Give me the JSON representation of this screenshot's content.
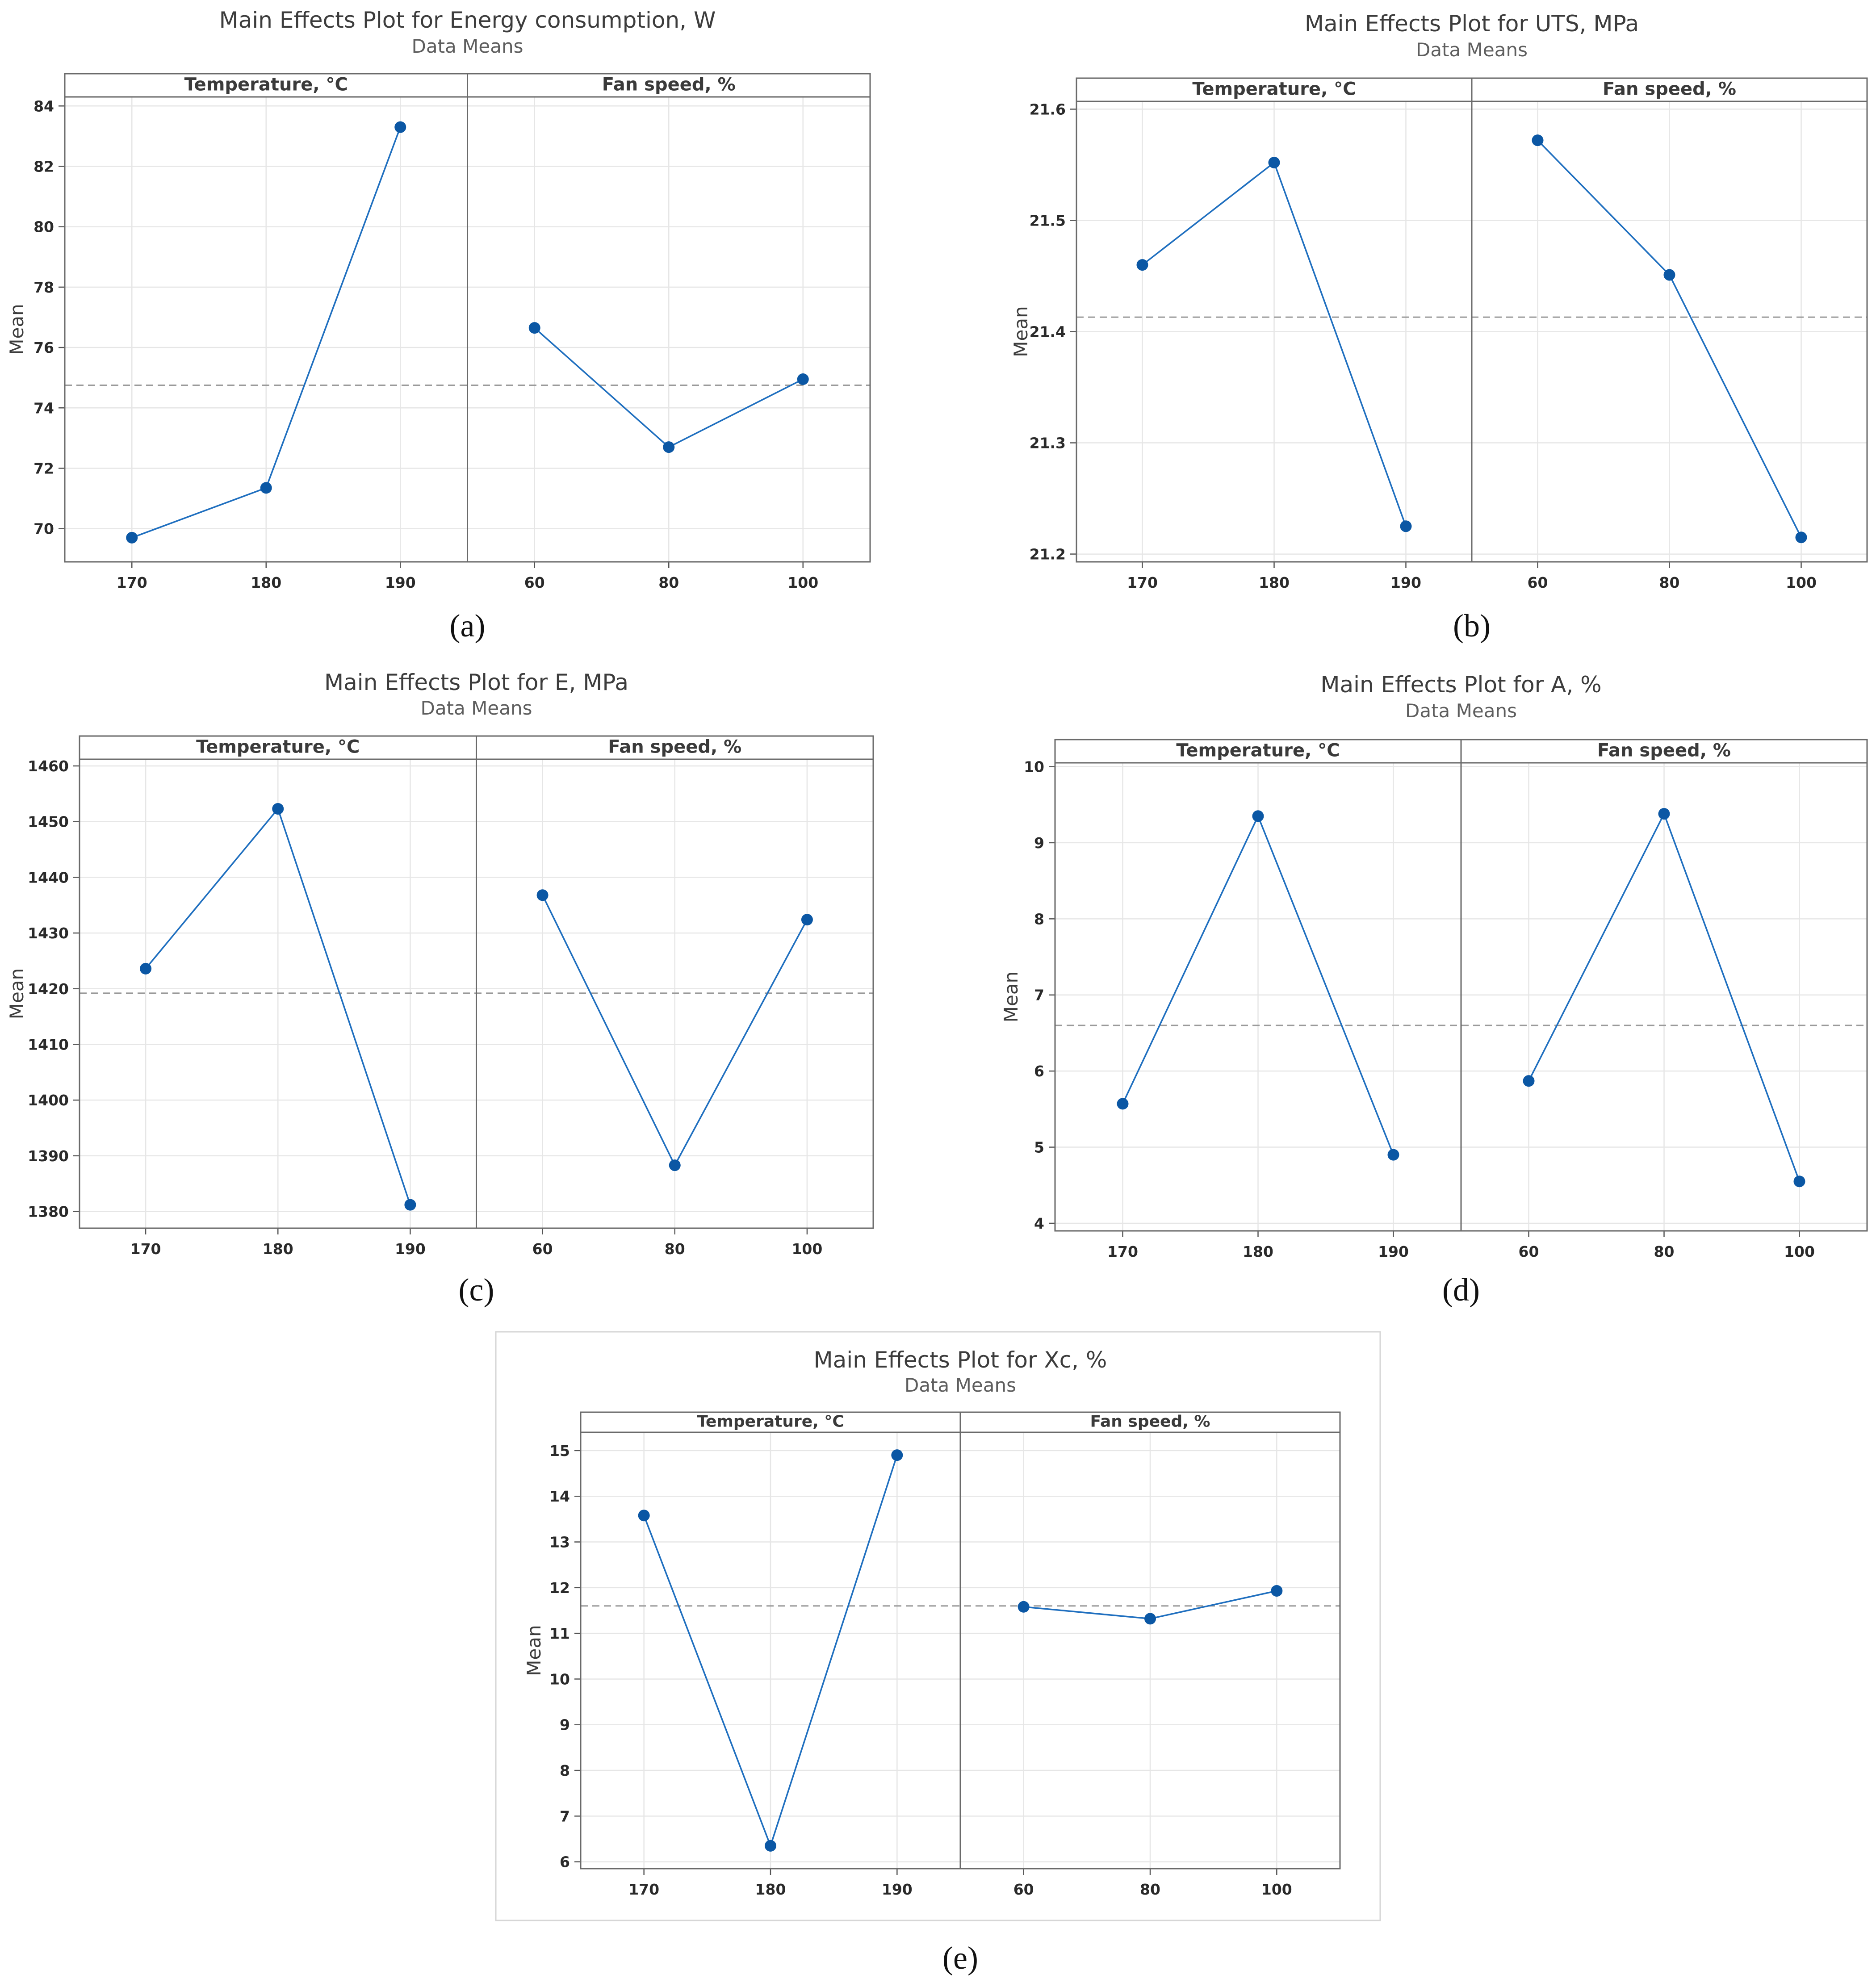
{
  "chart_data": [
    {
      "id": "a",
      "type": "line",
      "title": "Main Effects Plot for Energy consumption, W",
      "subtitle": "Data Means",
      "ylabel": "Mean",
      "ylim": [
        68.9,
        84.3
      ],
      "yticks": [
        70,
        72,
        74,
        76,
        78,
        80,
        82,
        84
      ],
      "ytick_labels": [
        "70",
        "72",
        "74",
        "76",
        "78",
        "80",
        "82",
        "84"
      ],
      "reference_mean": 74.75,
      "sublabel": "(a)",
      "panels": [
        {
          "header": "Temperature, °C",
          "x": [
            170,
            180,
            190
          ],
          "x_labels": [
            "170",
            "180",
            "190"
          ],
          "values": [
            69.7,
            71.35,
            83.3
          ]
        },
        {
          "header": "Fan speed, %",
          "x": [
            60,
            80,
            100
          ],
          "x_labels": [
            "60",
            "80",
            "100"
          ],
          "values": [
            76.65,
            72.7,
            74.95
          ]
        }
      ],
      "colors": {
        "line": "#1f6fbf",
        "marker": "#0b57a4",
        "mean_line": "#9a9a9a"
      }
    },
    {
      "id": "b",
      "type": "line",
      "title": "Main Effects Plot for UTS, MPa",
      "subtitle": "Data Means",
      "ylabel": "Mean",
      "ylim": [
        21.193,
        21.607
      ],
      "yticks": [
        21.2,
        21.3,
        21.4,
        21.5,
        21.6
      ],
      "ytick_labels": [
        "21.2",
        "21.3",
        "21.4",
        "21.5",
        "21.6"
      ],
      "reference_mean": 21.413,
      "sublabel": "(b)",
      "panels": [
        {
          "header": "Temperature, °C",
          "x": [
            170,
            180,
            190
          ],
          "x_labels": [
            "170",
            "180",
            "190"
          ],
          "values": [
            21.46,
            21.552,
            21.225
          ]
        },
        {
          "header": "Fan speed, %",
          "x": [
            60,
            80,
            100
          ],
          "x_labels": [
            "60",
            "80",
            "100"
          ],
          "values": [
            21.572,
            21.451,
            21.215
          ]
        }
      ],
      "colors": {
        "line": "#1f6fbf",
        "marker": "#0b57a4",
        "mean_line": "#9a9a9a"
      }
    },
    {
      "id": "c",
      "type": "line",
      "title": "Main Effects Plot for E, MPa",
      "subtitle": "Data Means",
      "ylabel": "Mean",
      "ylim": [
        1377,
        1461.2
      ],
      "yticks": [
        1380,
        1390,
        1400,
        1410,
        1420,
        1430,
        1440,
        1450,
        1460
      ],
      "ytick_labels": [
        "1380",
        "1390",
        "1400",
        "1410",
        "1420",
        "1430",
        "1440",
        "1450",
        "1460"
      ],
      "reference_mean": 1419.2,
      "sublabel": "(c)",
      "panels": [
        {
          "header": "Temperature, °C",
          "x": [
            170,
            180,
            190
          ],
          "x_labels": [
            "170",
            "180",
            "190"
          ],
          "values": [
            1423.6,
            1452.3,
            1381.2
          ]
        },
        {
          "header": "Fan speed, %",
          "x": [
            60,
            80,
            100
          ],
          "x_labels": [
            "60",
            "80",
            "100"
          ],
          "values": [
            1436.8,
            1388.3,
            1432.4
          ]
        }
      ],
      "colors": {
        "line": "#1f6fbf",
        "marker": "#0b57a4",
        "mean_line": "#9a9a9a"
      }
    },
    {
      "id": "d",
      "type": "line",
      "title": "Main Effects Plot for A, %",
      "subtitle": "Data Means",
      "ylabel": "Mean",
      "ylim": [
        3.9,
        10.05
      ],
      "yticks": [
        4,
        5,
        6,
        7,
        8,
        9,
        10
      ],
      "ytick_labels": [
        "4",
        "5",
        "6",
        "7",
        "8",
        "9",
        "10"
      ],
      "reference_mean": 6.6,
      "sublabel": "(d)",
      "panels": [
        {
          "header": "Temperature, °C",
          "x": [
            170,
            180,
            190
          ],
          "x_labels": [
            "170",
            "180",
            "190"
          ],
          "values": [
            5.57,
            9.35,
            4.9
          ]
        },
        {
          "header": "Fan speed, %",
          "x": [
            60,
            80,
            100
          ],
          "x_labels": [
            "60",
            "80",
            "100"
          ],
          "values": [
            5.87,
            9.38,
            4.55
          ]
        }
      ],
      "colors": {
        "line": "#1f6fbf",
        "marker": "#0b57a4",
        "mean_line": "#9a9a9a"
      }
    },
    {
      "id": "e",
      "type": "line",
      "title": "Main Effects Plot for Xc, %",
      "subtitle": "Data Means",
      "ylabel": "Mean",
      "ylim": [
        5.85,
        15.4
      ],
      "yticks": [
        6,
        7,
        8,
        9,
        10,
        11,
        12,
        13,
        14,
        15
      ],
      "ytick_labels": [
        "6",
        "7",
        "8",
        "9",
        "10",
        "11",
        "12",
        "13",
        "14",
        "15"
      ],
      "reference_mean": 11.6,
      "sublabel": "(e)",
      "panels": [
        {
          "header": "Temperature, °C",
          "x": [
            170,
            180,
            190
          ],
          "x_labels": [
            "170",
            "180",
            "190"
          ],
          "values": [
            13.58,
            6.35,
            14.9
          ]
        },
        {
          "header": "Fan speed, %",
          "x": [
            60,
            80,
            100
          ],
          "x_labels": [
            "60",
            "80",
            "100"
          ],
          "values": [
            11.58,
            11.32,
            11.93
          ]
        }
      ],
      "colors": {
        "line": "#1f6fbf",
        "marker": "#0b57a4",
        "mean_line": "#9a9a9a"
      }
    }
  ]
}
